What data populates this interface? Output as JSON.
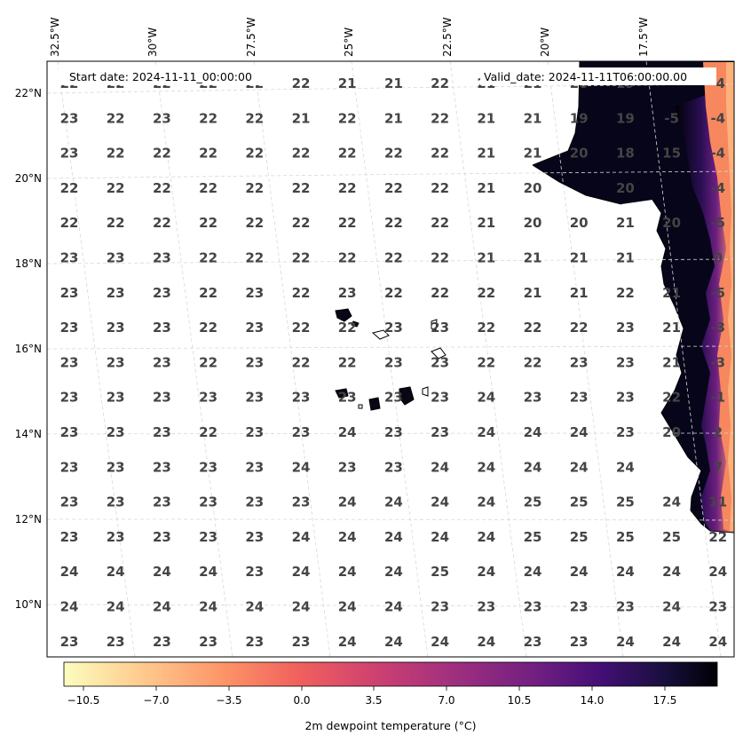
{
  "header": {
    "start_date": "Start date: 2024-11-11_00:00:00",
    "valid_date": "Valid_date: 2024-11-11T06:00:00.00"
  },
  "map": {
    "lon_labels": [
      "32.5°W",
      "30°W",
      "27.5°W",
      "25°W",
      "22.5°W",
      "20°W",
      "17.5°W"
    ],
    "lat_labels": [
      "22°N",
      "20°N",
      "18°N",
      "16°N",
      "14°N",
      "12°N",
      "10°N"
    ],
    "grid_values": [
      [
        "22",
        "22",
        "22",
        "22",
        "22",
        "22",
        "21",
        "21",
        "22",
        "21",
        "21",
        "20",
        "19",
        "",
        "-4"
      ],
      [
        "23",
        "22",
        "23",
        "22",
        "22",
        "21",
        "22",
        "21",
        "22",
        "21",
        "21",
        "19",
        "19",
        "-5",
        "-4"
      ],
      [
        "23",
        "22",
        "22",
        "22",
        "22",
        "22",
        "22",
        "22",
        "22",
        "21",
        "21",
        "20",
        "18",
        "15",
        "-4"
      ],
      [
        "22",
        "22",
        "22",
        "22",
        "22",
        "22",
        "22",
        "22",
        "22",
        "21",
        "20",
        "",
        "20",
        "",
        "-4"
      ],
      [
        "22",
        "22",
        "22",
        "22",
        "22",
        "22",
        "22",
        "22",
        "22",
        "21",
        "20",
        "20",
        "21",
        "20",
        "-5"
      ],
      [
        "23",
        "23",
        "23",
        "22",
        "22",
        "22",
        "22",
        "22",
        "22",
        "21",
        "21",
        "21",
        "21",
        "",
        "0"
      ],
      [
        "23",
        "23",
        "23",
        "22",
        "23",
        "22",
        "23",
        "22",
        "22",
        "22",
        "21",
        "21",
        "22",
        "21",
        "-5"
      ],
      [
        "23",
        "23",
        "23",
        "22",
        "23",
        "22",
        "22",
        "23",
        "23",
        "22",
        "22",
        "22",
        "23",
        "21",
        "-3"
      ],
      [
        "23",
        "23",
        "23",
        "22",
        "23",
        "22",
        "22",
        "23",
        "23",
        "22",
        "22",
        "23",
        "23",
        "21",
        "-3"
      ],
      [
        "23",
        "23",
        "23",
        "23",
        "23",
        "23",
        "23",
        "23",
        "23",
        "24",
        "23",
        "23",
        "23",
        "22",
        "-1"
      ],
      [
        "23",
        "23",
        "23",
        "22",
        "23",
        "23",
        "24",
        "23",
        "23",
        "24",
        "24",
        "24",
        "23",
        "20",
        "2"
      ],
      [
        "23",
        "23",
        "23",
        "23",
        "23",
        "24",
        "23",
        "23",
        "24",
        "24",
        "24",
        "24",
        "24",
        "",
        "7"
      ],
      [
        "23",
        "23",
        "23",
        "23",
        "23",
        "23",
        "24",
        "24",
        "24",
        "24",
        "25",
        "25",
        "25",
        "24",
        "11"
      ],
      [
        "23",
        "23",
        "23",
        "23",
        "23",
        "24",
        "24",
        "24",
        "24",
        "24",
        "25",
        "25",
        "25",
        "25",
        "22"
      ],
      [
        "24",
        "24",
        "24",
        "24",
        "23",
        "24",
        "24",
        "24",
        "25",
        "24",
        "24",
        "24",
        "24",
        "24",
        "24"
      ],
      [
        "24",
        "24",
        "24",
        "24",
        "24",
        "24",
        "24",
        "24",
        "23",
        "23",
        "23",
        "23",
        "23",
        "24",
        "23"
      ],
      [
        "23",
        "23",
        "23",
        "23",
        "23",
        "23",
        "24",
        "24",
        "24",
        "24",
        "23",
        "23",
        "24",
        "24",
        "24"
      ]
    ]
  },
  "colorbar": {
    "ticks": [
      "−10.5",
      "−7.0",
      "−3.5",
      "0.0",
      "3.5",
      "7.0",
      "10.5",
      "14.0",
      "17.5"
    ],
    "label": "2m dewpoint temperature (°C)",
    "colors": [
      "#fcfdbf",
      "#feca8d",
      "#fd9668",
      "#f1605d",
      "#cd4071",
      "#9e2f7f",
      "#721f81",
      "#440f76",
      "#180f3d",
      "#000004"
    ]
  }
}
